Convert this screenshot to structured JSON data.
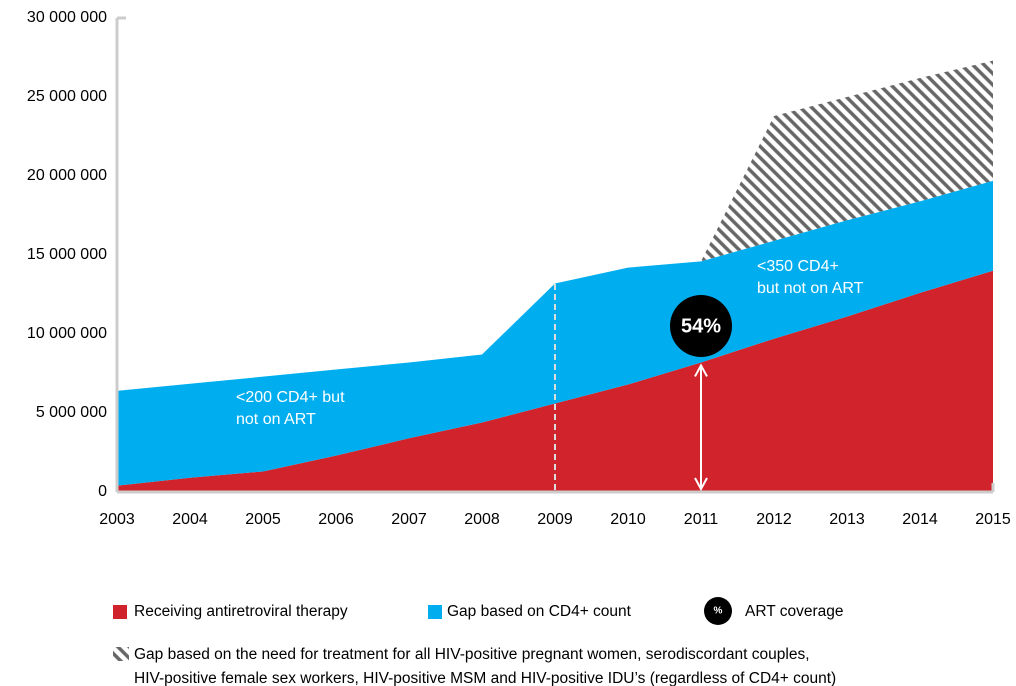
{
  "chart_data": {
    "type": "stacked_area",
    "x": [
      2003,
      2004,
      2005,
      2006,
      2007,
      2008,
      2009,
      2010,
      2011,
      2012,
      2013,
      2014,
      2015
    ],
    "xlim": [
      2003,
      2015
    ],
    "xticks": [
      2003,
      2004,
      2005,
      2006,
      2007,
      2008,
      2009,
      2010,
      2011,
      2012,
      2013,
      2014,
      2015
    ],
    "ylim": [
      0,
      30000000
    ],
    "yticks": [
      0,
      {
        "value": 5000000,
        "label": "5 000 000"
      },
      {
        "value": 10000000,
        "label": "10 000 000"
      },
      {
        "value": 15000000,
        "label": "15 000 000"
      },
      {
        "value": 20000000,
        "label": "20 000 000"
      },
      {
        "value": 25000000,
        "label": "25 000 000"
      },
      {
        "value": 30000000,
        "label": "30 000 000"
      }
    ],
    "series": [
      {
        "name": "Receiving antiretroviral therapy",
        "color": "#d0232b",
        "values": [
          400000,
          900000,
          1300000,
          2300000,
          3400000,
          4400000,
          5600000,
          6800000,
          8200000,
          9700000,
          11100000,
          12600000,
          14000000
        ]
      },
      {
        "name": "Gap based on CD4+ count",
        "color": "#00aeef",
        "values": [
          6000000,
          5950000,
          6000000,
          5450000,
          4800000,
          4300000,
          7600000,
          7400000,
          6400000,
          6200000,
          6100000,
          5800000,
          5700000
        ]
      },
      {
        "name": "Gap based on the need for treatment for all HIV-positive pregnant women, serodiscordant couples,\nHIV-positive female sex workers, HIV-positive MSM and HIV-positive IDU’s (regardless of CD4+ count)",
        "color": "#666666",
        "pattern": "hatch",
        "values": [
          null,
          null,
          null,
          null,
          null,
          null,
          null,
          null,
          0,
          7900000,
          7800000,
          7800000,
          7600000
        ]
      }
    ],
    "annotations": [
      {
        "text": "<200 CD4+ but\nnot on ART"
      },
      {
        "text": "<350 CD4+\nbut not on ART"
      },
      {
        "text": "54%"
      }
    ],
    "coverage_legend": {
      "symbol": "%",
      "label": "ART coverage"
    }
  }
}
